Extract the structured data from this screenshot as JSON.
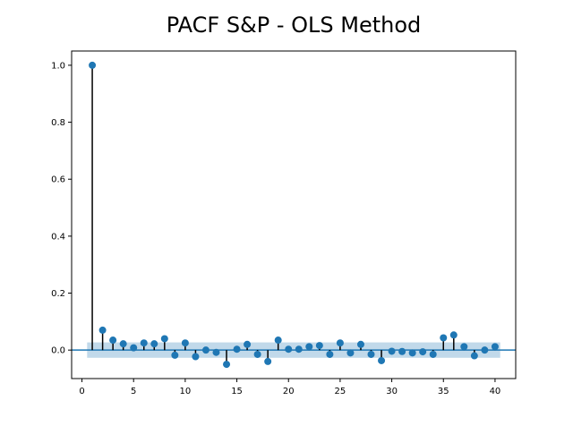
{
  "chart_data": {
    "type": "stem",
    "title": "PACF S&P - OLS Method",
    "xlabel": "",
    "ylabel": "",
    "xlim": [
      -1,
      42
    ],
    "ylim": [
      -0.1,
      1.05
    ],
    "xticks": [
      0,
      5,
      10,
      15,
      20,
      25,
      30,
      35,
      40
    ],
    "yticks": [
      0.0,
      0.2,
      0.4,
      0.6,
      0.8,
      1.0
    ],
    "ytick_labels": [
      "0.0",
      "0.2",
      "0.4",
      "0.6",
      "0.8",
      "1.0"
    ],
    "confidence_band": [
      -0.027,
      0.027
    ],
    "zero_line": 0,
    "colors": {
      "marker": "#1f77b4",
      "stem": "#000000",
      "band": "#1f77b4",
      "axis_line": "#1f77b4"
    },
    "lags": [
      1,
      2,
      3,
      4,
      5,
      6,
      7,
      8,
      9,
      10,
      11,
      12,
      13,
      14,
      15,
      16,
      17,
      18,
      19,
      20,
      21,
      22,
      23,
      24,
      25,
      26,
      27,
      28,
      29,
      30,
      31,
      32,
      33,
      34,
      35,
      36,
      37,
      38,
      39,
      40
    ],
    "values": [
      1.0,
      0.07,
      0.035,
      0.022,
      0.008,
      0.025,
      0.022,
      0.04,
      -0.018,
      0.025,
      -0.023,
      0.0,
      -0.008,
      -0.05,
      0.003,
      0.02,
      -0.015,
      -0.04,
      0.035,
      0.003,
      0.003,
      0.012,
      0.016,
      -0.015,
      0.025,
      -0.01,
      0.02,
      -0.015,
      -0.037,
      -0.004,
      -0.005,
      -0.01,
      -0.006,
      -0.015,
      0.043,
      0.053,
      0.012,
      -0.02,
      0.0,
      0.012
    ]
  }
}
